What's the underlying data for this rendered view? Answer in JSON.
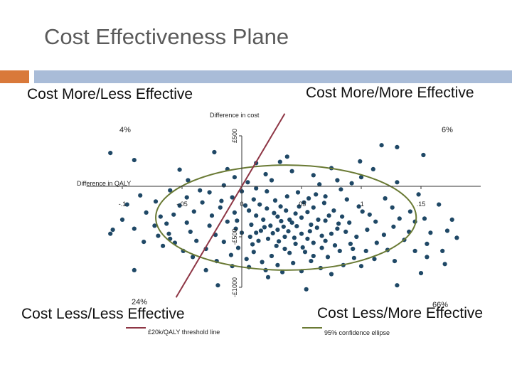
{
  "slide_title": "Cost Effectiveness Plane",
  "quadrants": {
    "top_left": "Cost More/Less Effective",
    "top_right": "Cost More/More Effective",
    "bottom_left": "Cost Less/Less Effective",
    "bottom_right": "Cost Less/More Effective"
  },
  "colors": {
    "points": "#1f4866",
    "threshold_line": "#8e3645",
    "ellipse": "#6a7a34",
    "accent_orange": "#d9793a",
    "accent_blue": "#a9bcd8"
  },
  "chart_data": {
    "type": "scatter",
    "xlabel": "Difference in QALY",
    "ylabel": "Difference in cost",
    "xlim": [
      -0.13,
      0.2
    ],
    "ylim": [
      -1000,
      500
    ],
    "x_ticks": [
      {
        "value": -0.1,
        "label": "-.1"
      },
      {
        "value": -0.05,
        "label": "-.05"
      },
      {
        "value": 0,
        "label": "0"
      },
      {
        "value": 0.05,
        "label": ".05"
      },
      {
        "value": 0.1,
        "label": ".1"
      },
      {
        "value": 0.15,
        "label": ".15"
      }
    ],
    "y_ticks": [
      {
        "value": 500,
        "label": "£500"
      },
      {
        "value": -500,
        "label": "-£500"
      },
      {
        "value": -1000,
        "label": "-£1000"
      }
    ],
    "quadrant_percentages": {
      "top_left": "4%",
      "top_right": "6%",
      "bottom_left": "24%",
      "bottom_right": "66%"
    },
    "threshold_line": {
      "label": "£20k/QALY threshold line",
      "slope": 20000,
      "x_range": [
        -0.055,
        0.036
      ]
    },
    "confidence_ellipse": {
      "label": "95% confidence ellipse",
      "center": [
        0.037,
        -310
      ],
      "semi_axis_x": 0.109,
      "semi_axis_y": 520
    },
    "grid": false,
    "legend_position": "bottom",
    "series": [
      {
        "points": [
          [
            -0.11,
            330
          ],
          [
            -0.09,
            260
          ],
          [
            -0.108,
            -430
          ],
          [
            -0.052,
            165
          ],
          [
            0.117,
            407
          ],
          [
            0.13,
            388
          ],
          [
            -0.023,
            338
          ],
          [
            0.038,
            294
          ],
          [
            0.099,
            247
          ],
          [
            0.032,
            242
          ],
          [
            0.152,
            310
          ],
          [
            0.172,
            -440
          ],
          [
            -0.06,
            -520
          ],
          [
            0.054,
            -1020
          ],
          [
            0.15,
            -860
          ],
          [
            0.13,
            -980
          ],
          [
            0.17,
            -770
          ],
          [
            -0.02,
            -980
          ],
          [
            -0.09,
            -830
          ],
          [
            0.155,
            -570
          ],
          [
            -0.041,
            -700
          ],
          [
            -0.017,
            -145
          ],
          [
            0.101,
            -250
          ],
          [
            0.07,
            -100
          ],
          [
            0.021,
            -50
          ],
          [
            0.021,
            -220
          ],
          [
            0.0325,
            -200
          ],
          [
            0.045,
            -270
          ],
          [
            0.037,
            -240
          ],
          [
            0.03,
            -300
          ],
          [
            0.04,
            -330
          ],
          [
            0.05,
            -310
          ],
          [
            0.042,
            -360
          ],
          [
            0.035,
            -400
          ],
          [
            0.046,
            -395
          ],
          [
            0.058,
            -380
          ],
          [
            0.063,
            -410
          ],
          [
            0.064,
            -330
          ],
          [
            0.07,
            -340
          ],
          [
            0.024,
            -390
          ],
          [
            0.018,
            -330
          ],
          [
            0.012,
            -290
          ],
          [
            0.008,
            -380
          ],
          [
            0.016,
            -440
          ],
          [
            0.026,
            -465
          ],
          [
            0.036,
            -500
          ],
          [
            0.05,
            -470
          ],
          [
            0.055,
            -520
          ],
          [
            0.06,
            -560
          ],
          [
            0.045,
            -570
          ],
          [
            0.029,
            -590
          ],
          [
            0.014,
            -540
          ],
          [
            0.007,
            -500
          ],
          [
            -0.005,
            -420
          ],
          [
            -0.012,
            -350
          ],
          [
            -0.006,
            -260
          ],
          [
            0.003,
            -190
          ],
          [
            0.01,
            -130
          ],
          [
            0.028,
            -140
          ],
          [
            0.052,
            -160
          ],
          [
            0.06,
            -210
          ],
          [
            0.077,
            -240
          ],
          [
            0.084,
            -300
          ],
          [
            0.09,
            -360
          ],
          [
            0.08,
            -420
          ],
          [
            0.075,
            -470
          ],
          [
            0.07,
            -540
          ],
          [
            0.067,
            -610
          ],
          [
            0.053,
            -650
          ],
          [
            0.04,
            -660
          ],
          [
            0.025,
            -690
          ],
          [
            0.01,
            -650
          ],
          [
            -0.003,
            -610
          ],
          [
            -0.015,
            -550
          ],
          [
            -0.022,
            -480
          ],
          [
            -0.027,
            -390
          ],
          [
            -0.025,
            -290
          ],
          [
            -0.018,
            -210
          ],
          [
            -0.008,
            -110
          ],
          [
            0.0,
            -50
          ],
          [
            0.012,
            -20
          ],
          [
            0.047,
            -60
          ],
          [
            0.062,
            -80
          ],
          [
            0.088,
            -130
          ],
          [
            0.098,
            -200
          ],
          [
            0.107,
            -280
          ],
          [
            0.112,
            -350
          ],
          [
            0.105,
            -430
          ],
          [
            0.096,
            -500
          ],
          [
            0.091,
            -570
          ],
          [
            0.082,
            -640
          ],
          [
            0.072,
            -700
          ],
          [
            0.058,
            -740
          ],
          [
            0.043,
            -760
          ],
          [
            0.03,
            -780
          ],
          [
            0.017,
            -750
          ],
          [
            0.004,
            -720
          ],
          [
            -0.009,
            -680
          ],
          [
            -0.03,
            -620
          ],
          [
            -0.038,
            -540
          ],
          [
            -0.043,
            -450
          ],
          [
            -0.046,
            -360
          ],
          [
            -0.04,
            -250
          ],
          [
            -0.033,
            -160
          ],
          [
            -0.027,
            -60
          ],
          [
            -0.015,
            10
          ],
          [
            0.005,
            40
          ],
          [
            0.025,
            60
          ],
          [
            0.065,
            20
          ],
          [
            0.083,
            -30
          ],
          [
            0.12,
            -120
          ],
          [
            0.126,
            -210
          ],
          [
            0.132,
            -320
          ],
          [
            0.127,
            -400
          ],
          [
            0.119,
            -480
          ],
          [
            0.113,
            -560
          ],
          [
            0.104,
            -640
          ],
          [
            0.094,
            -710
          ],
          [
            0.085,
            -780
          ],
          [
            0.066,
            -810
          ],
          [
            0.05,
            -840
          ],
          [
            0.034,
            -850
          ],
          [
            0.02,
            -830
          ],
          [
            0.006,
            -800
          ],
          [
            -0.008,
            -790
          ],
          [
            -0.021,
            -740
          ],
          [
            -0.049,
            -640
          ],
          [
            -0.056,
            -560
          ],
          [
            -0.061,
            -470
          ],
          [
            -0.063,
            -370
          ],
          [
            -0.057,
            -280
          ],
          [
            -0.052,
            -190
          ],
          [
            -0.046,
            -110
          ],
          [
            -0.035,
            -40
          ],
          [
            0.141,
            -250
          ],
          [
            0.145,
            -350
          ],
          [
            0.14,
            -450
          ],
          [
            0.136,
            -530
          ],
          [
            0.122,
            -630
          ],
          [
            0.111,
            -720
          ],
          [
            0.1,
            -790
          ],
          [
            -0.066,
            -590
          ],
          [
            -0.07,
            -490
          ],
          [
            -0.073,
            -390
          ],
          [
            -0.068,
            -300
          ],
          [
            -0.072,
            -150
          ],
          [
            -0.08,
            -260
          ],
          [
            0.153,
            -320
          ],
          [
            0.158,
            -460
          ],
          [
            0.145,
            -640
          ],
          [
            0.128,
            -740
          ],
          [
            0.02,
            120
          ],
          [
            0.042,
            150
          ],
          [
            0.06,
            110
          ],
          [
            0.08,
            60
          ],
          [
            0.092,
            30
          ],
          [
            0.1,
            90
          ],
          [
            0.075,
            180
          ],
          [
            0.012,
            230
          ],
          [
            -0.006,
            90
          ],
          [
            -0.012,
            170
          ],
          [
            0.11,
            170
          ],
          [
            0.13,
            40
          ],
          [
            0.148,
            -80
          ],
          [
            0.165,
            -180
          ],
          [
            0.176,
            -330
          ],
          [
            0.18,
            -510
          ],
          [
            0.168,
            -640
          ],
          [
            0.155,
            -700
          ],
          [
            0.075,
            -870
          ],
          [
            0.022,
            -900
          ],
          [
            -0.03,
            -830
          ],
          [
            -0.082,
            -550
          ],
          [
            -0.09,
            -420
          ],
          [
            -0.096,
            -180
          ],
          [
            -0.1,
            -330
          ],
          [
            -0.11,
            -470
          ],
          [
            -0.085,
            -90
          ],
          [
            -0.06,
            -40
          ],
          [
            -0.045,
            60
          ],
          [
            0.048,
            -200
          ],
          [
            0.055,
            -255
          ],
          [
            0.033,
            -345
          ],
          [
            0.027,
            -265
          ],
          [
            0.019,
            -405
          ],
          [
            0.039,
            -445
          ],
          [
            0.057,
            -445
          ],
          [
            0.067,
            -490
          ],
          [
            0.051,
            -605
          ],
          [
            0.036,
            -620
          ],
          [
            0.031,
            -545
          ],
          [
            0.009,
            -575
          ],
          [
            0.0,
            -460
          ],
          [
            -0.004,
            -340
          ],
          [
            0.006,
            -240
          ],
          [
            0.015,
            -180
          ],
          [
            0.038,
            -100
          ],
          [
            0.056,
            -120
          ],
          [
            0.069,
            -165
          ],
          [
            0.073,
            -290
          ],
          [
            0.081,
            -370
          ],
          [
            0.087,
            -450
          ],
          [
            0.078,
            -585
          ],
          [
            0.093,
            -620
          ],
          [
            0.06,
            -690
          ],
          [
            0.012,
            -460
          ],
          [
            0.022,
            -520
          ],
          [
            0.044,
            -510
          ],
          [
            0.03,
            -430
          ]
        ]
      }
    ]
  }
}
